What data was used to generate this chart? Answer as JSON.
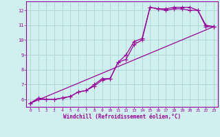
{
  "xlabel": "Windchill (Refroidissement éolien,°C)",
  "bg_color": "#d0f0f0",
  "line_color": "#990099",
  "grid_color": "#b0d8d8",
  "xlim": [
    -0.5,
    23.5
  ],
  "ylim": [
    5.5,
    12.6
  ],
  "xticks": [
    0,
    1,
    2,
    3,
    4,
    5,
    6,
    7,
    8,
    9,
    10,
    11,
    12,
    13,
    14,
    15,
    16,
    17,
    18,
    19,
    20,
    21,
    22,
    23
  ],
  "yticks": [
    6,
    7,
    8,
    9,
    10,
    11,
    12
  ],
  "line1_x": [
    0,
    1,
    2,
    3,
    4,
    5,
    6,
    7,
    8,
    9,
    10,
    11,
    12,
    13,
    14,
    15,
    16,
    17,
    18,
    19,
    20,
    21,
    22,
    23
  ],
  "line1_y": [
    5.75,
    6.1,
    6.0,
    6.0,
    6.1,
    6.2,
    6.5,
    6.6,
    7.0,
    7.4,
    7.4,
    8.5,
    9.0,
    9.9,
    10.1,
    12.2,
    12.1,
    12.1,
    12.2,
    12.2,
    12.2,
    12.0,
    11.0,
    10.9
  ],
  "line2_x": [
    0,
    1,
    2,
    3,
    4,
    5,
    6,
    7,
    8,
    9,
    10,
    11,
    12,
    13,
    14,
    15,
    16,
    17,
    18,
    19,
    20,
    21,
    22,
    23
  ],
  "line2_y": [
    5.75,
    6.0,
    6.0,
    6.0,
    6.1,
    6.2,
    6.5,
    6.6,
    6.9,
    7.3,
    7.4,
    8.5,
    8.7,
    9.7,
    10.0,
    12.2,
    12.1,
    12.0,
    12.1,
    12.1,
    12.0,
    12.0,
    10.9,
    10.9
  ],
  "line3_x": [
    0,
    23
  ],
  "line3_y": [
    5.75,
    10.9
  ]
}
